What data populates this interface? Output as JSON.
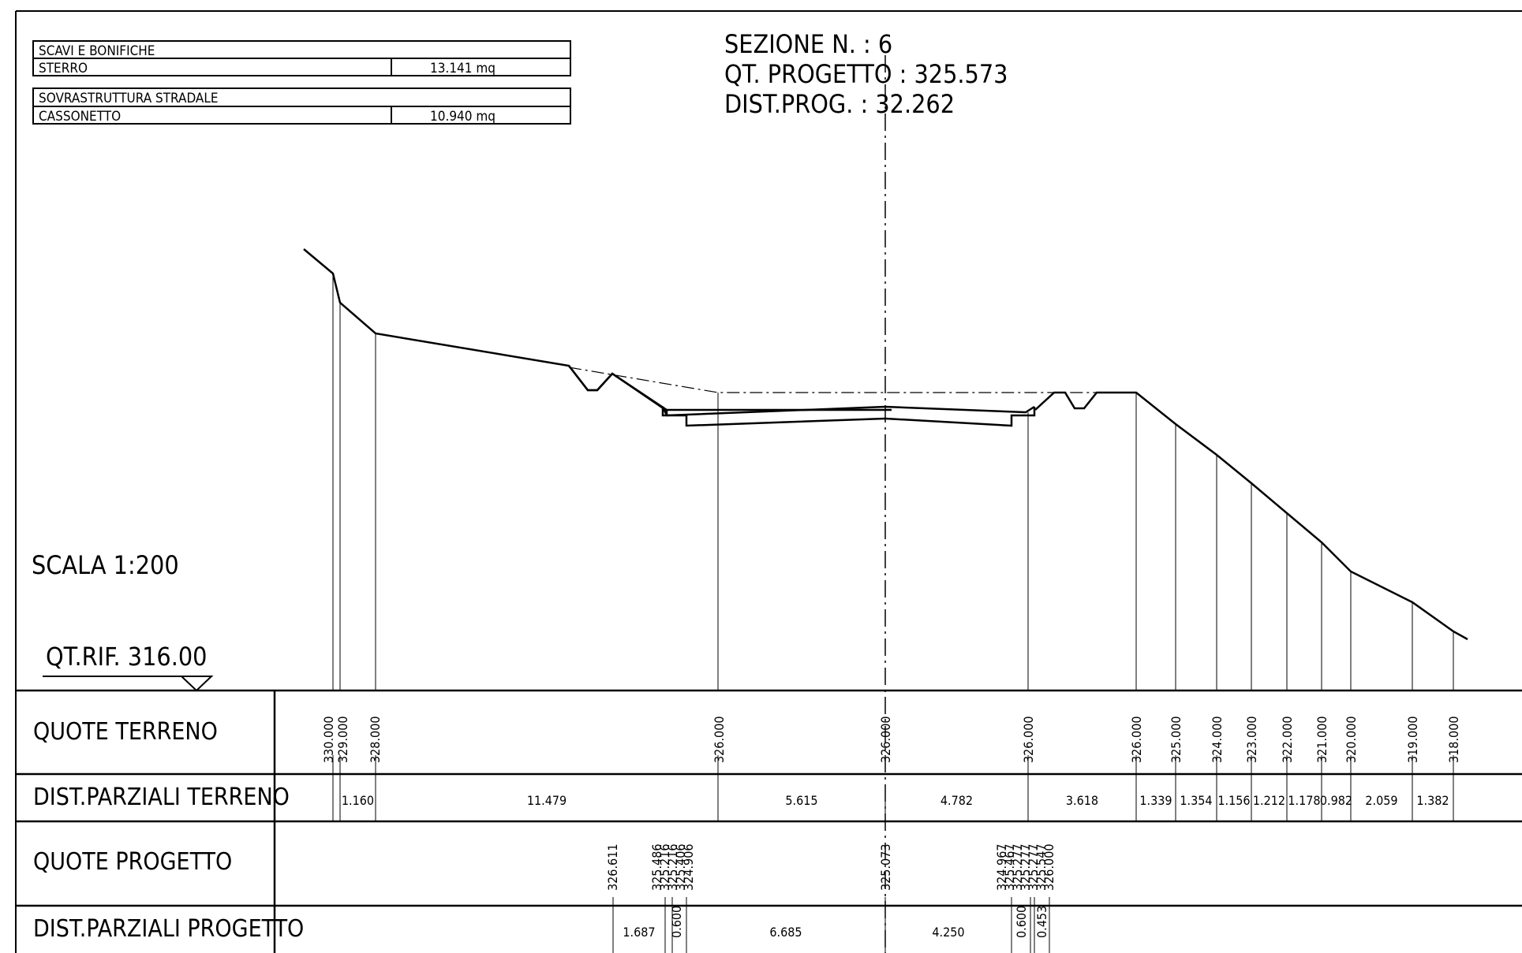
{
  "header": {
    "title_line1": "SEZIONE N. : 6",
    "title_line2": "QT. PROGETTO : 325.573",
    "title_line3": "DIST.PROG. : 32.262"
  },
  "quantities": {
    "group1_title": "SCAVI E BONIFICHE",
    "group1_row_label": "STERRO",
    "group1_row_value": "13.141 mq",
    "group2_title": "SOVRASTRUTTURA STRADALE",
    "group2_row_label": "CASSONETTO",
    "group2_row_value": "10.940 mq"
  },
  "scale_label": "SCALA 1:200",
  "reference_level": "QT.RIF. 316.00",
  "rows": {
    "quote_terreno": "QUOTE TERRENO",
    "dist_parziali_terreno": "DIST.PARZIALI TERRENO",
    "quote_progetto": "QUOTE PROGETTO",
    "dist_parziali_progetto": "DIST.PARZIALI PROGETTO"
  },
  "ground_elevations": [
    "330.000",
    "329.000",
    "328.000",
    "326.000",
    "326.000",
    "326.000",
    "326.000",
    "325.000",
    "324.000",
    "323.000",
    "322.000",
    "321.000",
    "320.000",
    "319.000",
    "318.000"
  ],
  "centerline_ground_elevation": "326.000",
  "ground_partial_distances": [
    "1.160",
    "11.479",
    "5.615",
    "4.782",
    "3.618",
    "1.339",
    "1.354",
    "1.156",
    "1.212",
    "1.178",
    "0.982",
    "2.059",
    "1.382"
  ],
  "project_elevations_left": [
    "326.611",
    "325.486",
    "325.216",
    "325.216",
    "325.406",
    "324.906"
  ],
  "project_elevation_axis": "325.073",
  "project_elevations_right": [
    "324.967",
    "325.467",
    "325.277",
    "325.277",
    "325.277",
    "325.547",
    "326.000"
  ],
  "project_partial_distances": [
    "1.687",
    "0.600",
    "6.685",
    "4.250",
    "0.600",
    "0.453"
  ]
}
